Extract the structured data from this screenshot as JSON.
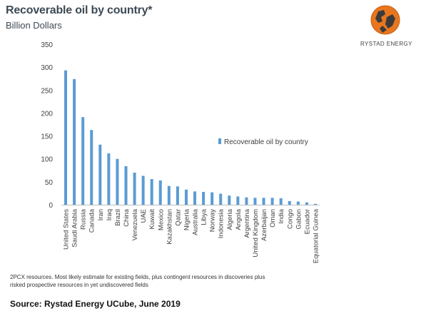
{
  "header": {
    "title": "Recoverable oil by country*",
    "subtitle": "Billion Dollars"
  },
  "logo": {
    "text": "RYSTAD ENERGY"
  },
  "chart_data": {
    "type": "bar",
    "categories": [
      "United States",
      "Saudi Arabia",
      "Russia",
      "Canada",
      "Iran",
      "Iraq",
      "Brazil",
      "China",
      "Venezuela",
      "UAE",
      "Kuwait",
      "Mexico",
      "Kazakhstan",
      "Qatar",
      "Nigeria",
      "Australia",
      "Libya",
      "Norway",
      "Indonesia",
      "Algeria",
      "Angola",
      "Argentina",
      "United Kingdom",
      "Azerbaijan",
      "Oman",
      "India",
      "Congo",
      "Gabon",
      "Ecuador",
      "Equatorial Guinea"
    ],
    "series": [
      {
        "name": "Recoverable oil by country",
        "values": [
          293,
          274,
          191,
          163,
          131,
          112,
          100,
          84,
          70,
          63,
          56,
          53,
          41,
          40,
          33,
          29,
          28,
          27,
          24,
          20,
          18,
          16,
          15,
          15,
          15,
          14,
          8,
          7,
          5,
          2
        ]
      }
    ],
    "title": "Recoverable oil by country*",
    "ylabel": "Billion Dollars",
    "ylim": [
      0,
      350
    ],
    "yticks": [
      0,
      50,
      100,
      150,
      200,
      250,
      300,
      350
    ],
    "grid": false,
    "legend_position": "right",
    "colors": {
      "bar": "#5b9bd5",
      "axis": "#bfbfbf",
      "text": "#404040"
    }
  },
  "footnote": "2PCX resources. Most likely estimate for existing fields, plus contingent resources in discoveries plus risked prospective resources in yet undiscovered fields",
  "source": "Source: Rystad Energy UCube, June 2019"
}
